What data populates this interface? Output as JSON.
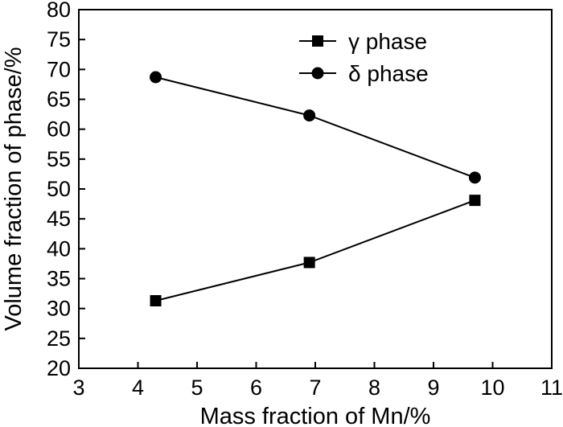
{
  "chart_data": {
    "type": "line",
    "xlabel": "Mass fraction of Mn/%",
    "ylabel": "Volume fraction of phase/%",
    "xlim": [
      3,
      11
    ],
    "ylim": [
      20,
      80
    ],
    "x_ticks": [
      "3",
      "4",
      "5",
      "6",
      "7",
      "8",
      "9",
      "10",
      "11"
    ],
    "y_ticks": [
      "20",
      "25",
      "30",
      "35",
      "40",
      "45",
      "50",
      "55",
      "60",
      "65",
      "70",
      "75",
      "80"
    ],
    "grid": false,
    "legend_position": "top-right",
    "series": [
      {
        "name": "γ phase",
        "marker": "square",
        "color": "#000000",
        "x": [
          4.3,
          6.9,
          9.7
        ],
        "y": [
          31.3,
          37.7,
          48.1
        ]
      },
      {
        "name": "δ phase",
        "marker": "circle",
        "color": "#000000",
        "x": [
          4.3,
          6.9,
          9.7
        ],
        "y": [
          68.7,
          62.3,
          51.9
        ]
      }
    ]
  }
}
